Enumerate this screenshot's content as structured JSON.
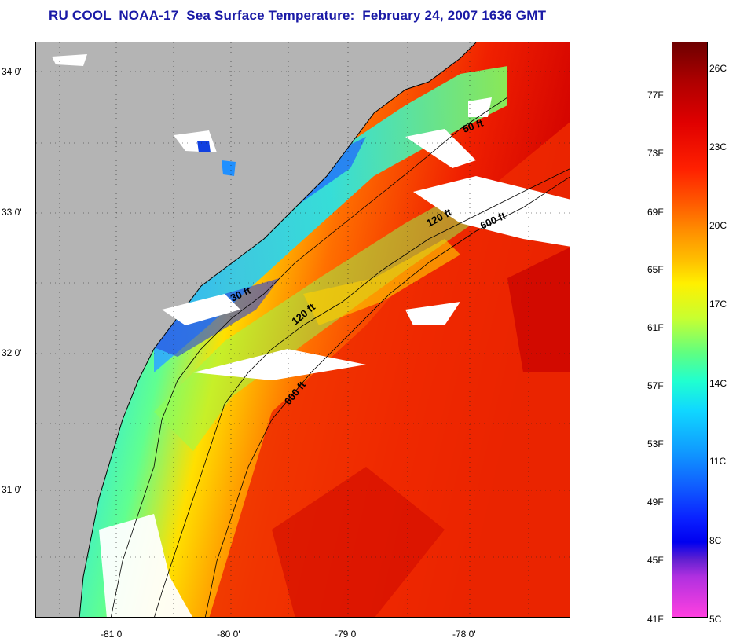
{
  "title": "RU COOL  NOAA-17  Sea Surface Temperature:  February 24, 2007 1636 GMT",
  "map": {
    "lat_labels": [
      "34 0'",
      "33 0'",
      "32 0'",
      "31 0'"
    ],
    "lon_labels": [
      "-81 0'",
      "-80 0'",
      "-79 0'",
      "-78 0'"
    ],
    "contour_labels": [
      "50 ft",
      "120 ft",
      "600 ft",
      "30 ft",
      "120 ft",
      "600 ft"
    ],
    "land_color": "#b4b4b4",
    "cloud_color": "#ffffff"
  },
  "colorbar": {
    "fahrenheit_labels": [
      "77F",
      "73F",
      "69F",
      "65F",
      "61F",
      "57F",
      "53F",
      "49F",
      "45F",
      "41F"
    ],
    "celsius_labels": [
      "26C",
      "23C",
      "20C",
      "17C",
      "14C",
      "11C",
      "8C",
      "5C"
    ]
  }
}
